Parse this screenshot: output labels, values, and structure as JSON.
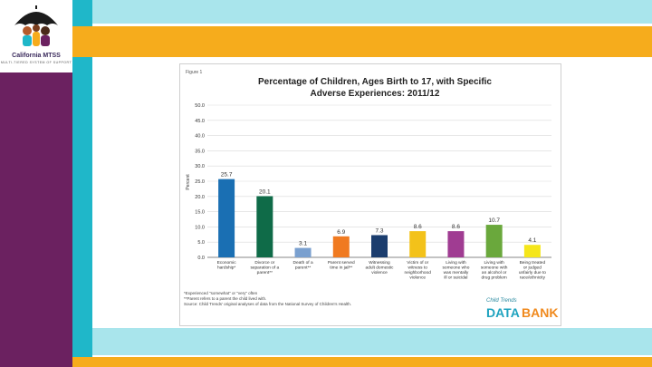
{
  "logo": {
    "name": "California MTSS",
    "tagline": "MULTI-TIERED SYSTEM OF SUPPORT"
  },
  "colors": {
    "purple": "#6b2160",
    "teal": "#1fb7c9",
    "light_teal": "#a9e5ec",
    "gold": "#f6ac1c"
  },
  "chart_data": {
    "type": "bar",
    "figure_label": "Figure 1",
    "title": "Percentage of Children, Ages Birth to 17, with Specific",
    "subtitle": "Adverse Experiences: 2011/12",
    "ylabel": "Percent",
    "xlabel": "",
    "ylim": [
      0,
      50
    ],
    "yticks": [
      "0.0",
      "5.0",
      "10.0",
      "15.0",
      "20.0",
      "25.0",
      "30.0",
      "35.0",
      "40.0",
      "45.0",
      "50.0"
    ],
    "categories": [
      [
        "Economic",
        "hardship*"
      ],
      [
        "Divorce or",
        "separation of a",
        "parent**"
      ],
      [
        "Death of a",
        "parent**"
      ],
      [
        "Parent served",
        "time in jail**"
      ],
      [
        "Witnessing",
        "adult domestic",
        "violence"
      ],
      [
        "Victim of or",
        "witness to",
        "neighborhood",
        "violence"
      ],
      [
        "Living with",
        "someone who",
        "was mentally",
        "ill or suicidal"
      ],
      [
        "Living with",
        "someone with",
        "an alcohol or",
        "drug problem"
      ],
      [
        "Being treated",
        "or judged",
        "unfairly due to",
        "race/ethnicity"
      ]
    ],
    "values": [
      25.7,
      20.1,
      3.1,
      6.9,
      7.3,
      8.6,
      8.6,
      10.7,
      4.1
    ],
    "value_labels": [
      "25.7",
      "20.1",
      "3.1",
      "6.9",
      "7.3",
      "8.6",
      "8.6",
      "10.7",
      "4.1"
    ],
    "bar_colors": [
      "#1a6fb3",
      "#0f6b48",
      "#7aa0cf",
      "#f07a20",
      "#1b3d6e",
      "#f3c21a",
      "#a03c92",
      "#6aa83c",
      "#f5e61a"
    ],
    "footnotes": [
      "*Experienced \"somewhat\" or \"very\" often",
      "**Parent refers to a parent the child lived with.",
      "Source: Child Trends' original analyses of data from the National Survey of Children's Health."
    ],
    "source_logo": {
      "top": "Child Trends",
      "left": "DATA",
      "right": "BANK"
    }
  }
}
